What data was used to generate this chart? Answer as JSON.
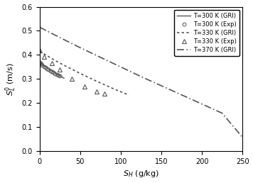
{
  "title": "",
  "xlabel": "$S_H$ (g/kg)",
  "ylabel": "$S_L^0$ (m/s)",
  "xlim": [
    0,
    250
  ],
  "ylim": [
    0.0,
    0.6
  ],
  "yticks": [
    0.0,
    0.1,
    0.2,
    0.3,
    0.4,
    0.5,
    0.6
  ],
  "xticks": [
    0,
    50,
    100,
    150,
    200,
    250
  ],
  "line_300K_x": [
    0,
    5,
    10,
    15,
    20,
    25,
    30
  ],
  "line_300K_y": [
    0.368,
    0.356,
    0.345,
    0.334,
    0.323,
    0.313,
    0.303
  ],
  "line_330K_x": [
    0,
    10,
    20,
    30,
    40,
    50,
    60,
    70,
    80,
    90,
    100,
    110
  ],
  "line_330K_y": [
    0.415,
    0.395,
    0.375,
    0.357,
    0.34,
    0.323,
    0.307,
    0.291,
    0.276,
    0.261,
    0.247,
    0.233
  ],
  "line_370K_x": [
    0,
    25,
    50,
    75,
    100,
    125,
    150,
    175,
    200,
    225,
    250
  ],
  "line_370K_y": [
    0.515,
    0.472,
    0.43,
    0.39,
    0.35,
    0.31,
    0.272,
    0.234,
    0.196,
    0.158,
    0.058
  ],
  "exp_300K_x": [
    0.5,
    1,
    2,
    3,
    5,
    7,
    9,
    11,
    13,
    15,
    17,
    19,
    21,
    23,
    25
  ],
  "exp_300K_y": [
    0.368,
    0.365,
    0.362,
    0.358,
    0.352,
    0.347,
    0.342,
    0.338,
    0.334,
    0.33,
    0.327,
    0.323,
    0.32,
    0.317,
    0.314
  ],
  "exp_330K_x": [
    0.5,
    5,
    15,
    25,
    40,
    55,
    70,
    80
  ],
  "exp_330K_y": [
    0.418,
    0.393,
    0.365,
    0.338,
    0.3,
    0.27,
    0.248,
    0.24
  ],
  "color": "#555555",
  "legend_entries": [
    "T=300 K (GRI)",
    "T=300 K (Exp)",
    "T=330 K (GRI)",
    "T=330 K (Exp)",
    "–·T=370 K (GRI)"
  ],
  "legend_entries_clean": [
    "T=300 K (GRI)",
    "T=300 K (Exp)",
    "T=330 K (GRI)",
    "T=330 K (Exp)",
    "T=370 K (GRI)"
  ]
}
